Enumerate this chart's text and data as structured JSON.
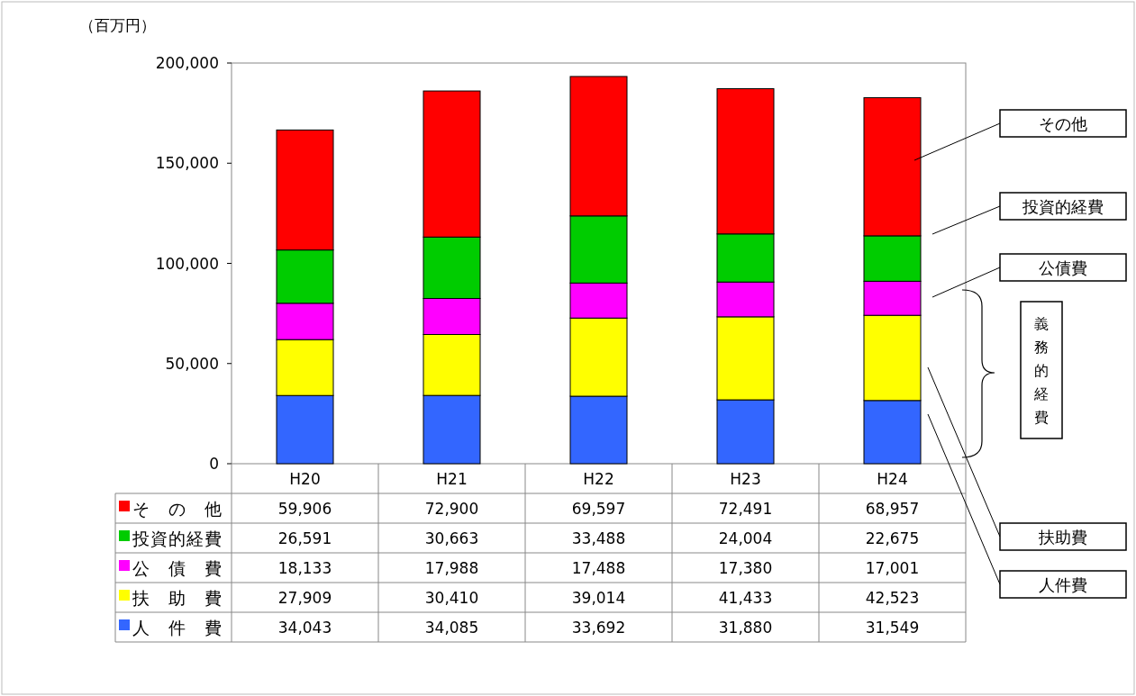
{
  "chart_data": {
    "type": "bar",
    "stacked": true,
    "ylabel": "（百万円）",
    "categories": [
      "H20",
      "H21",
      "H22",
      "H23",
      "H24"
    ],
    "ylim": [
      0,
      200000
    ],
    "legend": "bottom left",
    "yticks": [
      {
        "value": 0,
        "label": "0"
      },
      {
        "value": 50000,
        "label": "50,000"
      },
      {
        "value": 100000,
        "label": "100,000"
      },
      {
        "value": 150000,
        "label": "150,000"
      },
      {
        "value": 200000,
        "label": "200,000"
      }
    ],
    "series": [
      {
        "name": "人 件 費",
        "color": "#3366ff",
        "values": [
          34043,
          34085,
          33692,
          31880,
          31549
        ],
        "value_labels": [
          "34,043",
          "34,085",
          "33,692",
          "31,880",
          "31,549"
        ]
      },
      {
        "name": "扶 助 費",
        "color": "#ffff00",
        "values": [
          27909,
          30410,
          39014,
          41433,
          42523
        ],
        "value_labels": [
          "27,909",
          "30,410",
          "39,014",
          "41,433",
          "42,523"
        ]
      },
      {
        "name": "公 債 費",
        "color": "#ff00ff",
        "values": [
          18133,
          17988,
          17488,
          17380,
          17001
        ],
        "value_labels": [
          "18,133",
          "17,988",
          "17,488",
          "17,380",
          "17,001"
        ]
      },
      {
        "name": "投資的経費",
        "color": "#00cc00",
        "values": [
          26591,
          30663,
          33488,
          24004,
          22675
        ],
        "value_labels": [
          "26,591",
          "30,663",
          "33,488",
          "24,004",
          "22,675"
        ]
      },
      {
        "name": "そ の 他",
        "color": "#ff0000",
        "values": [
          59906,
          72900,
          69597,
          72491,
          68957
        ],
        "value_labels": [
          "59,906",
          "72,900",
          "69,597",
          "72,491",
          "68,957"
        ]
      }
    ],
    "annotations": [
      "その他",
      "投資的経費",
      "公債費",
      "扶助費",
      "人件費",
      "義務的経費"
    ]
  }
}
